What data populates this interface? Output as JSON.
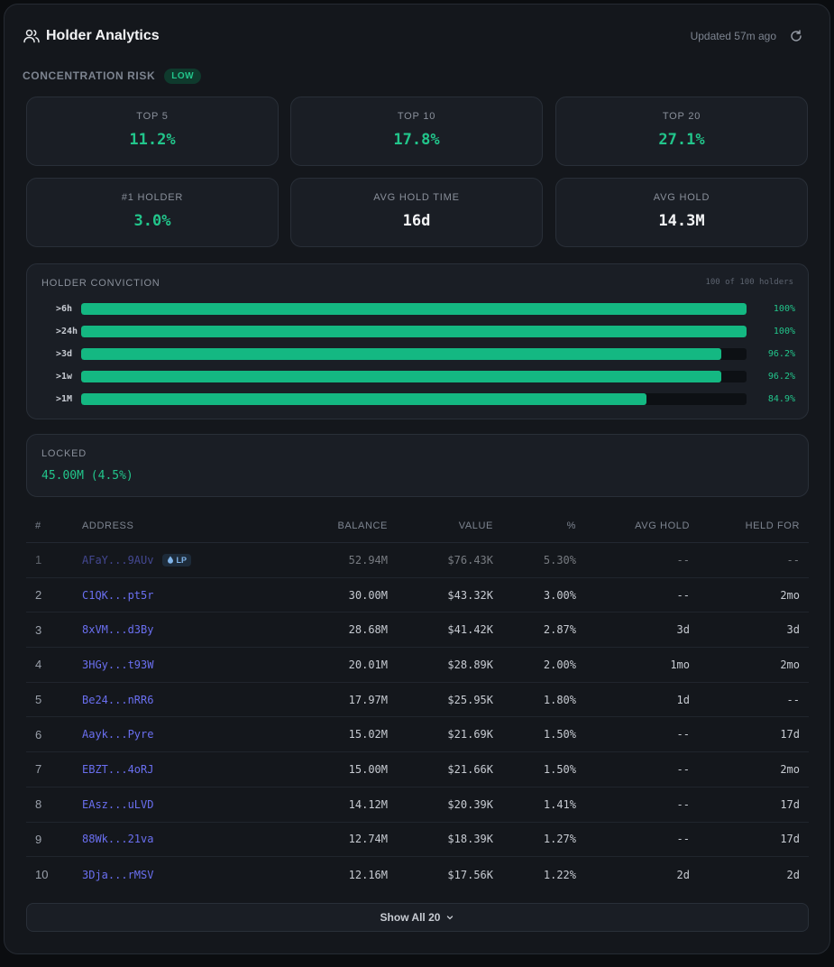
{
  "header": {
    "title": "Holder Analytics",
    "updated": "Updated 57m ago"
  },
  "risk": {
    "label": "CONCENTRATION RISK",
    "badge": "LOW"
  },
  "stats": [
    {
      "label": "TOP 5",
      "value": "11.2%"
    },
    {
      "label": "TOP 10",
      "value": "17.8%"
    },
    {
      "label": "TOP 20",
      "value": "27.1%"
    },
    {
      "label": "#1 HOLDER",
      "value": "3.0%"
    },
    {
      "label": "AVG HOLD TIME",
      "value": "16d"
    },
    {
      "label": "AVG HOLD",
      "value": "14.3M"
    }
  ],
  "conviction": {
    "title": "HOLDER CONVICTION",
    "subtitle": "100 of 100 holders",
    "bars": [
      {
        "label": ">6h",
        "pct_text": "100%",
        "fraction": 1.0
      },
      {
        "label": ">24h",
        "pct_text": "100%",
        "fraction": 1.0
      },
      {
        "label": ">3d",
        "pct_text": "96.2%",
        "fraction": 0.962
      },
      {
        "label": ">1w",
        "pct_text": "96.2%",
        "fraction": 0.962
      },
      {
        "label": ">1M",
        "pct_text": "84.9%",
        "fraction": 0.849
      }
    ]
  },
  "locked": {
    "label": "LOCKED",
    "value": "45.00M (4.5%)"
  },
  "table": {
    "headers": {
      "idx": "#",
      "address": "ADDRESS",
      "balance": "BALANCE",
      "value": "VALUE",
      "pct": "%",
      "avg_hold": "AVG HOLD",
      "held_for": "HELD FOR"
    },
    "lp_badge": "LP",
    "rows": [
      {
        "idx": "1",
        "address": "AFaY...9AUv",
        "balance": "52.94M",
        "value": "$76.43K",
        "pct": "5.30%",
        "avg_hold": "--",
        "held_for": "--"
      },
      {
        "idx": "2",
        "address": "C1QK...pt5r",
        "balance": "30.00M",
        "value": "$43.32K",
        "pct": "3.00%",
        "avg_hold": "--",
        "held_for": "2mo"
      },
      {
        "idx": "3",
        "address": "8xVM...d3By",
        "balance": "28.68M",
        "value": "$41.42K",
        "pct": "2.87%",
        "avg_hold": "3d",
        "held_for": "3d"
      },
      {
        "idx": "4",
        "address": "3HGy...t93W",
        "balance": "20.01M",
        "value": "$28.89K",
        "pct": "2.00%",
        "avg_hold": "1mo",
        "held_for": "2mo"
      },
      {
        "idx": "5",
        "address": "Be24...nRR6",
        "balance": "17.97M",
        "value": "$25.95K",
        "pct": "1.80%",
        "avg_hold": "1d",
        "held_for": "--"
      },
      {
        "idx": "6",
        "address": "Aayk...Pyre",
        "balance": "15.02M",
        "value": "$21.69K",
        "pct": "1.50%",
        "avg_hold": "--",
        "held_for": "17d"
      },
      {
        "idx": "7",
        "address": "EBZT...4oRJ",
        "balance": "15.00M",
        "value": "$21.66K",
        "pct": "1.50%",
        "avg_hold": "--",
        "held_for": "2mo"
      },
      {
        "idx": "8",
        "address": "EAsz...uLVD",
        "balance": "14.12M",
        "value": "$20.39K",
        "pct": "1.41%",
        "avg_hold": "--",
        "held_for": "17d"
      },
      {
        "idx": "9",
        "address": "88Wk...21va",
        "balance": "12.74M",
        "value": "$18.39K",
        "pct": "1.27%",
        "avg_hold": "--",
        "held_for": "17d"
      },
      {
        "idx": "10",
        "address": "3Dja...rMSV",
        "balance": "12.16M",
        "value": "$17.56K",
        "pct": "1.22%",
        "avg_hold": "2d",
        "held_for": "2d"
      }
    ]
  },
  "show_all": "Show All 20"
}
